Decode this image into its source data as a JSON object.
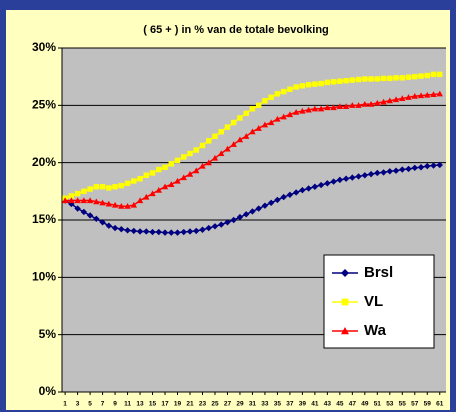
{
  "chart_data": {
    "type": "line",
    "subtitle": "( 65 + )   in % van de totale bevolking",
    "x": [
      1,
      2,
      3,
      4,
      5,
      6,
      7,
      8,
      9,
      10,
      11,
      12,
      13,
      14,
      15,
      16,
      17,
      18,
      19,
      20,
      21,
      22,
      23,
      24,
      25,
      26,
      27,
      28,
      29,
      30,
      31,
      32,
      33,
      34,
      35,
      36,
      37,
      38,
      39,
      40,
      41,
      42,
      43,
      44,
      45,
      46,
      47,
      48,
      49,
      50,
      51,
      52,
      53,
      54,
      55,
      56,
      57,
      58,
      59,
      60,
      61
    ],
    "xlim": [
      0.5,
      62
    ],
    "xticks": [
      1,
      3,
      5,
      7,
      9,
      11,
      13,
      15,
      17,
      19,
      21,
      23,
      25,
      27,
      29,
      31,
      33,
      35,
      37,
      39,
      41,
      43,
      45,
      47,
      49,
      51,
      53,
      55,
      57,
      59,
      61
    ],
    "ylim": [
      0,
      30
    ],
    "yticks": [
      {
        "value": 0,
        "label": "0%"
      },
      {
        "value": 5,
        "label": "5%"
      },
      {
        "value": 10,
        "label": "10%"
      },
      {
        "value": 15,
        "label": "15%"
      },
      {
        "value": 20,
        "label": "20%"
      },
      {
        "value": 25,
        "label": "25%"
      },
      {
        "value": 30,
        "label": "30%"
      }
    ],
    "grid": true,
    "legend": "right",
    "series": [
      {
        "name": "Brsl",
        "color": "#000080",
        "marker": "diamond",
        "values": [
          16.7,
          16.4,
          16.0,
          15.7,
          15.4,
          15.1,
          14.8,
          14.5,
          14.3,
          14.2,
          14.1,
          14.05,
          14.0,
          14.0,
          13.95,
          13.95,
          13.9,
          13.9,
          13.9,
          13.95,
          14.0,
          14.05,
          14.15,
          14.3,
          14.45,
          14.6,
          14.8,
          15.0,
          15.25,
          15.5,
          15.75,
          16.0,
          16.25,
          16.5,
          16.75,
          17.0,
          17.2,
          17.4,
          17.6,
          17.75,
          17.9,
          18.05,
          18.2,
          18.35,
          18.5,
          18.6,
          18.7,
          18.8,
          18.9,
          19.0,
          19.1,
          19.15,
          19.25,
          19.3,
          19.4,
          19.45,
          19.55,
          19.6,
          19.7,
          19.75,
          19.8
        ]
      },
      {
        "name": "VL",
        "color": "#ffff00",
        "marker": "square",
        "values": [
          16.9,
          17.1,
          17.3,
          17.5,
          17.7,
          17.9,
          17.9,
          17.8,
          17.9,
          18.0,
          18.2,
          18.4,
          18.6,
          18.9,
          19.1,
          19.4,
          19.6,
          19.9,
          20.2,
          20.5,
          20.8,
          21.1,
          21.5,
          21.9,
          22.3,
          22.7,
          23.1,
          23.5,
          23.9,
          24.3,
          24.7,
          25.0,
          25.4,
          25.7,
          26.0,
          26.2,
          26.4,
          26.6,
          26.7,
          26.8,
          26.85,
          26.9,
          27.0,
          27.05,
          27.1,
          27.15,
          27.2,
          27.25,
          27.3,
          27.3,
          27.3,
          27.35,
          27.35,
          27.4,
          27.4,
          27.45,
          27.5,
          27.55,
          27.6,
          27.7,
          27.7
        ]
      },
      {
        "name": "Wa",
        "color": "#ff0000",
        "marker": "triangle",
        "values": [
          16.7,
          16.7,
          16.7,
          16.7,
          16.7,
          16.6,
          16.5,
          16.4,
          16.3,
          16.2,
          16.2,
          16.3,
          16.7,
          17.0,
          17.3,
          17.6,
          17.9,
          18.1,
          18.4,
          18.7,
          19.0,
          19.3,
          19.7,
          20.0,
          20.4,
          20.8,
          21.2,
          21.6,
          22.0,
          22.3,
          22.7,
          23.0,
          23.3,
          23.5,
          23.8,
          24.0,
          24.2,
          24.4,
          24.5,
          24.6,
          24.7,
          24.7,
          24.8,
          24.8,
          24.9,
          24.9,
          25.0,
          25.0,
          25.1,
          25.1,
          25.2,
          25.3,
          25.4,
          25.5,
          25.6,
          25.7,
          25.8,
          25.85,
          25.9,
          25.95,
          26.0
        ]
      }
    ]
  }
}
